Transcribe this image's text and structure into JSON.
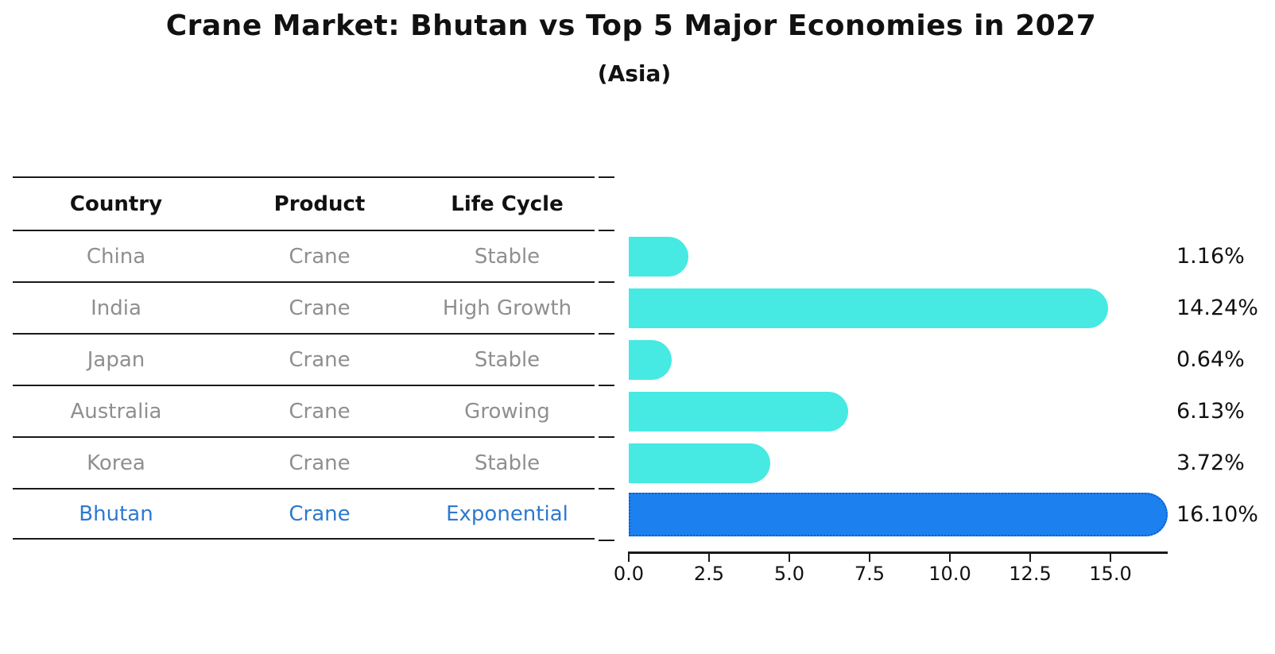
{
  "title": "Crane Market: Bhutan vs Top 5 Major Economies in 2027",
  "subtitle": "(Asia)",
  "table": {
    "headers": [
      "Country",
      "Product",
      "Life Cycle"
    ],
    "rows": [
      {
        "country": "China",
        "product": "Crane",
        "life_cycle": "Stable",
        "highlight": false
      },
      {
        "country": "India",
        "product": "Crane",
        "life_cycle": "High Growth",
        "highlight": false
      },
      {
        "country": "Japan",
        "product": "Crane",
        "life_cycle": "Stable",
        "highlight": false
      },
      {
        "country": "Australia",
        "product": "Crane",
        "life_cycle": "Growing",
        "highlight": false
      },
      {
        "country": "Korea",
        "product": "Crane",
        "life_cycle": "Stable",
        "highlight": false
      },
      {
        "country": "Bhutan",
        "product": "Crane",
        "life_cycle": "Exponential",
        "highlight": true
      }
    ]
  },
  "chart_data": {
    "type": "bar",
    "orientation": "horizontal",
    "title": "Crane Market: Bhutan vs Top 5 Major Economies in 2027",
    "subtitle": "(Asia)",
    "categories": [
      "China",
      "India",
      "Japan",
      "Australia",
      "Korea",
      "Bhutan"
    ],
    "values": [
      1.16,
      14.24,
      0.64,
      6.13,
      3.72,
      16.1
    ],
    "value_labels": [
      "1.16%",
      "14.24%",
      "0.64%",
      "6.13%",
      "3.72%",
      "16.10%"
    ],
    "xlabel": "",
    "ylabel": "",
    "xlim": [
      0,
      16.76
    ],
    "xticks": [
      0.0,
      2.5,
      5.0,
      7.5,
      10.0,
      12.5,
      15.0
    ],
    "xtick_labels": [
      "0.0",
      "2.5",
      "5.0",
      "7.5",
      "10.0",
      "12.5",
      "15.0"
    ],
    "grid": false,
    "legend": false,
    "bar_color": "#47e9e3",
    "highlight_color": "#1c80ee",
    "highlight_edge_color": "#0b5cd6",
    "highlight_index": 5
  },
  "colors": {
    "background": "#ffffff",
    "text_primary": "#111111",
    "text_muted": "#8f8f8f",
    "text_highlight": "#2e79cf",
    "axis": "#1a1a1a"
  }
}
